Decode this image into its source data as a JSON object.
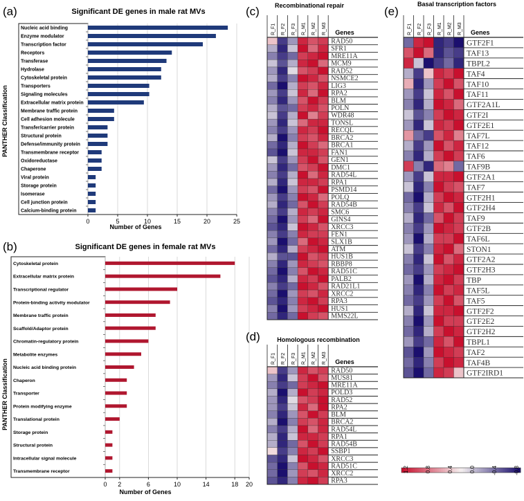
{
  "palette": {
    "male_bar": "#1f3a7a",
    "female_bar": "#b0172f",
    "grid": "#d0d0d0",
    "heat_hi": "#c8102e",
    "heat_mid": "#f5f0f0",
    "heat_lo": "#1b0f6e"
  },
  "chart_data": [
    {
      "panel": "(a)",
      "type": "bar",
      "orientation": "horizontal",
      "title": "Significant DE genes in male rat MVs",
      "xlabel": "Number of Genes",
      "ylabel": "PANTHER Classification",
      "xlim": [
        0,
        25
      ],
      "xticks": [
        "0",
        "5",
        "10",
        "15",
        "20",
        "25"
      ],
      "categories": [
        "Nucleic acid binding",
        "Enzyme modulator",
        "Transcription factor",
        "Receptors",
        "Transferase",
        "Hydrolase",
        "Cytoskeletal protein",
        "Transporters",
        "Signaling molecules",
        "Extracellular matrix protein",
        "Membrane traffic protein",
        "Cell adhesion molecule",
        "Transfer/carrier protein",
        "Structural protein",
        "Defense/immunity protein",
        "Transmembrane receptor",
        "Oxidoreductase",
        "Chaperone",
        "Viral protein",
        "Storage protein",
        "Isomerase",
        "Cell junction protein",
        "Calcium-binding protein"
      ],
      "values": [
        23.5,
        21.5,
        19.3,
        14.1,
        13.2,
        12.3,
        12.3,
        10.3,
        10.3,
        9.4,
        4.4,
        4.4,
        3.3,
        3.3,
        3.3,
        2.3,
        2.3,
        2.3,
        1.3,
        1.3,
        1.3,
        1.3,
        1.3
      ]
    },
    {
      "panel": "(b)",
      "type": "bar",
      "orientation": "horizontal",
      "title": "Significant DE genes in female rat MVs",
      "xlabel": "Number of Genes",
      "ylabel": "PANTHER Classification",
      "xlim": [
        0,
        20
      ],
      "xticks": [
        "0",
        "2",
        "6",
        "10",
        "14",
        "18",
        "20"
      ],
      "tick_values": [
        0,
        2,
        6,
        10,
        14,
        18,
        20
      ],
      "categories": [
        "Cytoskeletal protein",
        "Extracellular matrix protein",
        "Transcriptional regulator",
        "Protein-binding activity modulator",
        "Membrane traffic protein",
        "Scaffold/Adaptor protein",
        "Chromatin-regulatory protein",
        "Metabolite enzymes",
        "Nucleic acid binding protein",
        "Chaperon",
        "Transporter",
        "Protein modifying enzyme",
        "Translational protein",
        "Storage protein",
        "Structural protein",
        "Intracellular signal molecule",
        "Transmembrane receptor"
      ],
      "values": [
        18,
        16,
        10,
        9,
        7,
        7,
        6,
        5,
        4,
        3,
        3,
        3,
        2,
        1,
        1,
        1,
        1
      ]
    },
    {
      "panel": "(c)",
      "type": "heatmap",
      "title": "Recombinational repair",
      "columns": [
        "R_F1",
        "R_F2",
        "R_F3",
        "R_M1",
        "R_M2",
        "R_M3"
      ],
      "genes_header": "Genes",
      "rows": [
        "RAD50",
        "SFR1",
        "MRE11A",
        "MCM9",
        "RAD52",
        "NSMCE2",
        "LIG3",
        "RPA2",
        "BLM",
        "POLN",
        "WDR48",
        "TONSL",
        "RECQL",
        "BRCA2",
        "BRCA1",
        "FAN1",
        "GEN1",
        "DMC1",
        "RAD54L",
        "RPA1",
        "PSMD14",
        "POLQ",
        "RAD54B",
        "SMC6",
        "GINS4",
        "XRCC3",
        "FEN1",
        "SLX1B",
        "ATM",
        "HUS1B",
        "RBBP8",
        "RAD51C",
        "PALB2",
        "RAD21L1",
        "XRCC2",
        "RPA3",
        "HUS1",
        "MMS22L"
      ],
      "values": [
        [
          0.2,
          -0.8,
          -0.4,
          0.9,
          0.7,
          0.8
        ],
        [
          -0.3,
          -0.9,
          -0.2,
          1.0,
          0.6,
          0.9
        ],
        [
          -0.5,
          -0.8,
          -0.6,
          0.8,
          0.9,
          1.0
        ],
        [
          -0.2,
          -0.7,
          -0.3,
          0.9,
          1.0,
          0.6
        ],
        [
          -0.4,
          -0.9,
          -0.1,
          0.7,
          0.8,
          1.0
        ],
        [
          -0.3,
          -0.8,
          -0.5,
          1.0,
          0.9,
          0.7
        ],
        [
          -0.6,
          -1.0,
          -0.3,
          0.8,
          0.7,
          0.9
        ],
        [
          -0.4,
          -0.8,
          -0.2,
          0.9,
          0.6,
          1.0
        ],
        [
          -0.5,
          -0.9,
          -0.4,
          0.7,
          1.0,
          0.8
        ],
        [
          -0.3,
          -0.7,
          -0.6,
          0.8,
          0.9,
          0.7
        ],
        [
          -0.2,
          -0.8,
          -0.3,
          1.0,
          0.5,
          0.8
        ],
        [
          -0.4,
          -0.9,
          -0.2,
          0.6,
          0.9,
          0.9
        ],
        [
          -0.5,
          -0.8,
          -0.4,
          0.9,
          0.8,
          1.0
        ],
        [
          -0.3,
          -1.0,
          -0.5,
          0.8,
          0.7,
          0.9
        ],
        [
          -0.6,
          -0.9,
          -0.3,
          1.0,
          0.8,
          0.6
        ],
        [
          -0.7,
          -1.0,
          -0.2,
          0.9,
          0.9,
          0.8
        ],
        [
          -0.2,
          -0.8,
          -0.4,
          0.8,
          1.0,
          0.7
        ],
        [
          -0.4,
          -0.9,
          -0.6,
          0.7,
          0.8,
          1.0
        ],
        [
          -0.5,
          -0.8,
          -0.3,
          1.0,
          0.6,
          0.9
        ],
        [
          -0.3,
          -0.9,
          -0.2,
          0.9,
          0.9,
          0.8
        ],
        [
          -0.6,
          -1.0,
          -0.4,
          0.8,
          0.7,
          1.0
        ],
        [
          -0.4,
          -0.8,
          -0.5,
          1.0,
          0.9,
          0.6
        ],
        [
          -0.3,
          -0.9,
          -0.6,
          0.7,
          1.0,
          0.8
        ],
        [
          -0.5,
          -0.8,
          -0.3,
          0.9,
          0.8,
          0.9
        ],
        [
          -0.6,
          -1.0,
          -0.4,
          0.8,
          0.6,
          1.0
        ],
        [
          -0.7,
          -0.9,
          -0.2,
          1.0,
          0.9,
          0.7
        ],
        [
          -0.5,
          -0.8,
          -0.5,
          0.9,
          0.8,
          0.8
        ],
        [
          -0.4,
          -1.0,
          -0.6,
          0.6,
          1.0,
          0.9
        ],
        [
          -0.6,
          -0.9,
          -0.3,
          0.8,
          0.9,
          1.0
        ],
        [
          -0.3,
          -0.7,
          -0.7,
          1.0,
          0.7,
          0.8
        ],
        [
          -0.5,
          -0.9,
          -0.4,
          0.9,
          0.8,
          0.7
        ],
        [
          -0.6,
          -1.0,
          -0.5,
          0.7,
          1.0,
          0.9
        ],
        [
          -0.7,
          -0.9,
          -0.3,
          0.9,
          0.8,
          1.0
        ],
        [
          -0.5,
          -0.8,
          -0.6,
          1.0,
          0.9,
          0.7
        ],
        [
          -0.6,
          -1.0,
          -0.4,
          0.8,
          0.7,
          0.9
        ],
        [
          -0.7,
          -0.9,
          -0.5,
          0.9,
          1.0,
          0.8
        ],
        [
          -0.5,
          -1.0,
          -0.4,
          0.8,
          0.9,
          1.0
        ],
        [
          -0.6,
          -0.9,
          -0.6,
          1.0,
          0.8,
          0.7
        ]
      ]
    },
    {
      "panel": "(d)",
      "type": "heatmap",
      "title": "Homologous recombination",
      "columns": [
        "R_F1",
        "R_F2",
        "R_F3",
        "R_M1",
        "R_M2",
        "R_M3"
      ],
      "genes_header": "Genes",
      "rows": [
        "RAD50",
        "MUS81",
        "MRE11A",
        "POLD3",
        "RAD52",
        "RPA2",
        "BLM",
        "BRCA2",
        "RAD54L",
        "RPA1",
        "RAD54B",
        "SSBP1",
        "XRCC3",
        "RAD51C",
        "XRCC2",
        "RPA3"
      ],
      "values": [
        [
          0.2,
          -0.8,
          -0.4,
          0.9,
          0.7,
          0.8
        ],
        [
          -0.4,
          -0.9,
          -0.2,
          0.8,
          1.0,
          0.7
        ],
        [
          -0.5,
          -0.8,
          -0.6,
          0.8,
          0.9,
          1.0
        ],
        [
          -0.3,
          -1.0,
          -0.3,
          1.0,
          0.8,
          0.9
        ],
        [
          -0.4,
          -0.9,
          -0.1,
          0.7,
          0.8,
          1.0
        ],
        [
          -0.4,
          -0.8,
          -0.2,
          0.9,
          0.6,
          1.0
        ],
        [
          -0.5,
          -0.9,
          -0.4,
          0.7,
          1.0,
          0.8
        ],
        [
          -0.3,
          -1.0,
          -0.5,
          0.8,
          0.7,
          0.9
        ],
        [
          -0.5,
          -0.8,
          -0.3,
          1.0,
          0.6,
          0.9
        ],
        [
          -0.3,
          -0.9,
          -0.2,
          0.9,
          0.9,
          0.8
        ],
        [
          -0.3,
          -0.9,
          -0.6,
          0.7,
          1.0,
          0.8
        ],
        [
          0.1,
          -0.8,
          -0.5,
          0.9,
          0.8,
          1.0
        ],
        [
          -0.7,
          -0.9,
          -0.2,
          1.0,
          0.9,
          0.7
        ],
        [
          -0.6,
          -1.0,
          -0.5,
          0.7,
          1.0,
          0.9
        ],
        [
          -0.6,
          -1.0,
          -0.4,
          0.8,
          0.7,
          0.9
        ],
        [
          -0.7,
          -0.9,
          -0.5,
          0.9,
          1.0,
          0.8
        ]
      ]
    },
    {
      "panel": "(e)",
      "type": "heatmap",
      "title": "Basal transcription factors",
      "columns": [
        "R_F1",
        "R_F2",
        "R_F3",
        "R_M1",
        "R_M2",
        "R_M3"
      ],
      "genes_header": "Genes",
      "rows": [
        "GTF2F1",
        "TAF13",
        "TBPL2",
        "TAF4",
        "TAF10",
        "TAF11",
        "GTF2A1L",
        "GTF2I",
        "GTF2E1",
        "TAF7L",
        "TAF12",
        "TAF6",
        "TAF9B",
        "GTF2A1",
        "TAF7",
        "GTF2H1",
        "GTF2H4",
        "TAF9",
        "GTF2B",
        "TAF6L",
        "STON1",
        "GTF2A2",
        "GTF2H3",
        "TBP",
        "TAF5L",
        "TAF5",
        "GTF2F2",
        "GTF2E2",
        "GTF2H2",
        "TBPL1",
        "TAF2",
        "TAF4B",
        "GTF2IRD1"
      ],
      "values": [
        [
          -0.6,
          0.9,
          1.0,
          -0.9,
          -0.8,
          -1.0
        ],
        [
          0.7,
          1.0,
          0.6,
          -0.9,
          -0.7,
          -0.8
        ],
        [
          0.9,
          -0.2,
          -1.0,
          -0.8,
          -0.6,
          -0.9
        ],
        [
          -0.3,
          -0.8,
          0.2,
          0.9,
          0.8,
          1.0
        ],
        [
          0.3,
          -0.9,
          -0.4,
          0.8,
          1.0,
          0.7
        ],
        [
          -0.4,
          -0.8,
          -0.2,
          0.9,
          0.7,
          1.0
        ],
        [
          -0.5,
          -0.9,
          -0.3,
          1.0,
          0.9,
          0.6
        ],
        [
          -0.2,
          -0.7,
          -0.5,
          0.8,
          1.0,
          0.9
        ],
        [
          -0.4,
          -0.9,
          -0.2,
          0.9,
          0.8,
          1.0
        ],
        [
          0.4,
          -0.6,
          -0.8,
          0.7,
          0.9,
          0.5
        ],
        [
          -0.3,
          -0.8,
          -0.4,
          1.0,
          0.7,
          0.9
        ],
        [
          -0.5,
          -0.9,
          -0.3,
          0.8,
          1.0,
          0.8
        ],
        [
          0.8,
          -0.5,
          -0.9,
          0.6,
          0.5,
          -0.6
        ],
        [
          -0.4,
          -0.8,
          -0.2,
          0.9,
          0.9,
          1.0
        ],
        [
          -0.2,
          -0.9,
          -0.5,
          1.0,
          0.8,
          0.7
        ],
        [
          -0.6,
          -1.0,
          -0.3,
          0.8,
          1.0,
          0.9
        ],
        [
          -0.5,
          -0.8,
          -0.2,
          0.9,
          0.7,
          1.0
        ],
        [
          -0.3,
          -0.9,
          -0.6,
          0.7,
          1.0,
          0.8
        ],
        [
          -0.5,
          -0.8,
          -0.4,
          1.0,
          0.9,
          0.8
        ],
        [
          -0.4,
          -1.0,
          -0.3,
          0.8,
          0.8,
          1.0
        ],
        [
          -0.2,
          -0.8,
          -0.5,
          0.9,
          1.0,
          0.6
        ],
        [
          -0.5,
          -0.9,
          -0.2,
          1.0,
          0.7,
          0.9
        ],
        [
          -0.6,
          -0.8,
          -0.4,
          0.8,
          0.9,
          1.0
        ],
        [
          -0.4,
          -1.0,
          -0.3,
          0.9,
          1.0,
          0.8
        ],
        [
          -0.5,
          -0.9,
          -0.5,
          1.0,
          0.8,
          0.9
        ],
        [
          -0.6,
          -0.8,
          -0.4,
          0.8,
          1.0,
          0.7
        ],
        [
          -0.3,
          -0.9,
          -0.2,
          0.9,
          0.9,
          1.0
        ],
        [
          -0.5,
          -1.0,
          -0.4,
          1.0,
          0.8,
          0.8
        ],
        [
          -0.6,
          -0.9,
          -0.3,
          0.8,
          1.0,
          0.9
        ],
        [
          -0.4,
          -0.8,
          -0.6,
          0.9,
          0.7,
          1.0
        ],
        [
          -0.7,
          -1.0,
          -0.4,
          1.0,
          0.9,
          0.8
        ],
        [
          -0.6,
          -0.9,
          -0.5,
          0.8,
          1.0,
          0.9
        ],
        [
          -0.7,
          -1.0,
          -0.6,
          0.9,
          0.8,
          0.2
        ]
      ]
    }
  ],
  "legend": {
    "ticks": [
      "1.2",
      "0.8",
      "0.4",
      "0.0",
      "-0.4",
      "-0.8"
    ],
    "min": -1.2,
    "max": 1.2
  },
  "panel_labels": [
    "(a)",
    "(b)",
    "(c)",
    "(d)",
    "(e)"
  ]
}
